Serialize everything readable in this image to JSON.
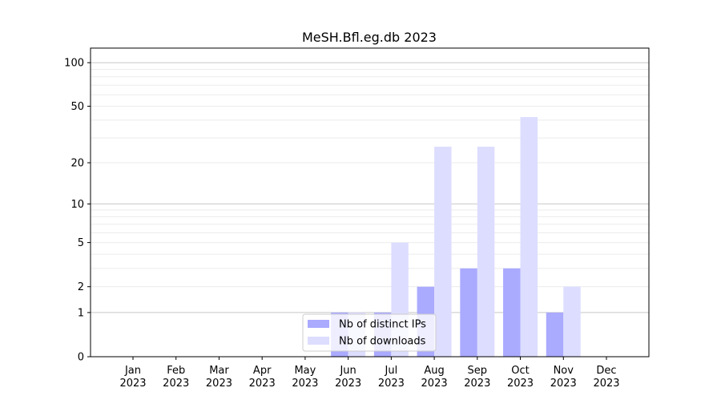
{
  "chart_data": {
    "type": "bar",
    "title": "MeSH.Bfl.eg.db 2023",
    "xlabel": "",
    "ylabel": "",
    "yscale": "log(1+y)",
    "ylim": [
      0,
      126
    ],
    "yticks": [
      0,
      1,
      2,
      5,
      10,
      20,
      50,
      100
    ],
    "grid": true,
    "legend_position": "bottom-center",
    "categories": [
      "Jan\n2023",
      "Feb\n2023",
      "Mar\n2023",
      "Apr\n2023",
      "May\n2023",
      "Jun\n2023",
      "Jul\n2023",
      "Aug\n2023",
      "Sep\n2023",
      "Oct\n2023",
      "Nov\n2023",
      "Dec\n2023"
    ],
    "series": [
      {
        "name": "Nb of distinct IPs",
        "color": "#aaaaff",
        "values": [
          0,
          0,
          0,
          0,
          0,
          1,
          1,
          2,
          3,
          3,
          1,
          0
        ]
      },
      {
        "name": "Nb of downloads",
        "color": "#ddddff",
        "values": [
          0,
          0,
          0,
          0,
          0,
          1,
          5,
          26,
          26,
          42,
          2,
          0
        ]
      }
    ]
  }
}
